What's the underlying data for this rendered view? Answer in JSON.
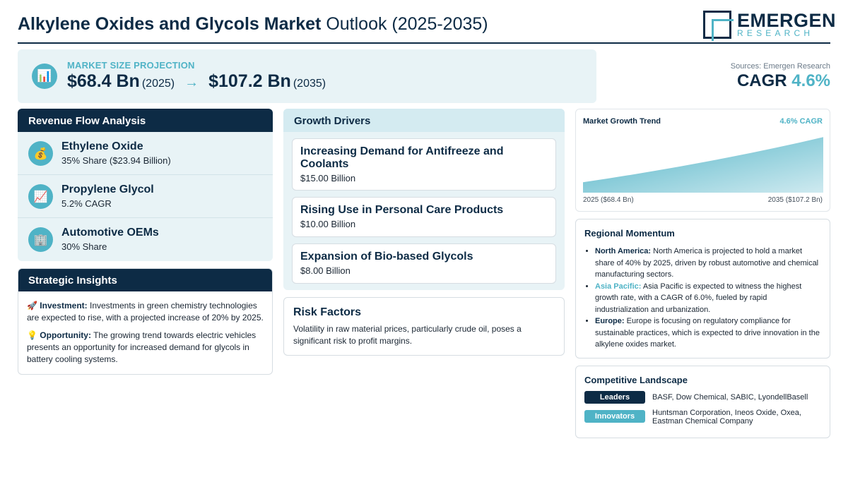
{
  "header": {
    "title_strong": "Alkylene Oxides and Glycols Market",
    "title_light": "Outlook (2025-2035)",
    "logo_name": "EMERGEN",
    "logo_sub": "RESEARCH"
  },
  "projection": {
    "label": "MARKET SIZE PROJECTION",
    "start_value": "$68.4 Bn",
    "start_year": "(2025)",
    "arrow": "→",
    "end_value": "$107.2 Bn",
    "end_year": "(2035)",
    "icon": "bar-chart-icon"
  },
  "summary": {
    "sources": "Sources: Emergen Research",
    "cagr_label": "CAGR",
    "cagr_value": "4.6%"
  },
  "revenue_flow": {
    "title": "Revenue Flow Analysis",
    "items": [
      {
        "name": "Ethylene Oxide",
        "detail": "35% Share ($23.94 Billion)",
        "icon": "money-bag-icon",
        "glyph": "💰"
      },
      {
        "name": "Propylene Glycol",
        "detail": "5.2% CAGR",
        "icon": "trend-chart-icon",
        "glyph": "📈"
      },
      {
        "name": "Automotive OEMs",
        "detail": "30% Share",
        "icon": "building-icon",
        "glyph": "🏢"
      }
    ]
  },
  "strategic": {
    "title": "Strategic Insights",
    "items": [
      {
        "emoji": "🚀",
        "label": "Investment:",
        "text": " Investments in green chemistry technologies are expected to rise, with a projected increase of 20% by 2025."
      },
      {
        "emoji": "💡",
        "label": "Opportunity:",
        "text": " The growing trend towards electric vehicles presents an opportunity for increased demand for glycols in battery cooling systems."
      }
    ]
  },
  "drivers": {
    "title": "Growth Drivers",
    "items": [
      {
        "name": "Increasing Demand for Antifreeze and Coolants",
        "value": "$15.00 Billion"
      },
      {
        "name": "Rising Use in Personal Care Products",
        "value": "$10.00 Billion"
      },
      {
        "name": "Expansion of Bio-based Glycols",
        "value": "$8.00 Billion"
      }
    ]
  },
  "risk": {
    "title": "Risk Factors",
    "text": "Volatility in raw material prices, particularly crude oil, poses a significant risk to profit margins."
  },
  "trend": {
    "title": "Market Growth Trend",
    "cagr": "4.6% CAGR",
    "x_start": "2025 ($68.4 Bn)",
    "x_end": "2035 ($107.2 Bn)"
  },
  "chart_data": {
    "type": "area",
    "title": "Market Growth Trend",
    "x": [
      2025,
      2035
    ],
    "values": [
      68.4,
      107.2
    ],
    "unit": "USD Bn",
    "cagr": "4.6%",
    "colors": {
      "top": "#b7e0e9",
      "bottom": "#4fb3c6"
    }
  },
  "regional": {
    "title": "Regional Momentum",
    "items": [
      {
        "region": "North America:",
        "text": " North America is projected to hold a market share of 40% by 2025, driven by robust automotive and chemical manufacturing sectors."
      },
      {
        "region": "Asia Pacific:",
        "text": " Asia Pacific is expected to witness the highest growth rate, with a CAGR of 6.0%, fueled by rapid industrialization and urbanization."
      },
      {
        "region": "Europe:",
        "text": " Europe is focusing on regulatory compliance for sustainable practices, which is expected to drive innovation in the alkylene oxides market."
      }
    ]
  },
  "competitive": {
    "title": "Competitive Landscape",
    "leaders_label": "Leaders",
    "leaders": "BASF, Dow Chemical, SABIC, LyondellBasell",
    "innovators_label": "Innovators",
    "innovators": "Huntsman Corporation, Ineos Oxide, Oxea, Eastman Chemical Company"
  },
  "colors": {
    "navy": "#0d2b45",
    "teal": "#4fb3c6",
    "light_panel": "#e8f3f6"
  }
}
